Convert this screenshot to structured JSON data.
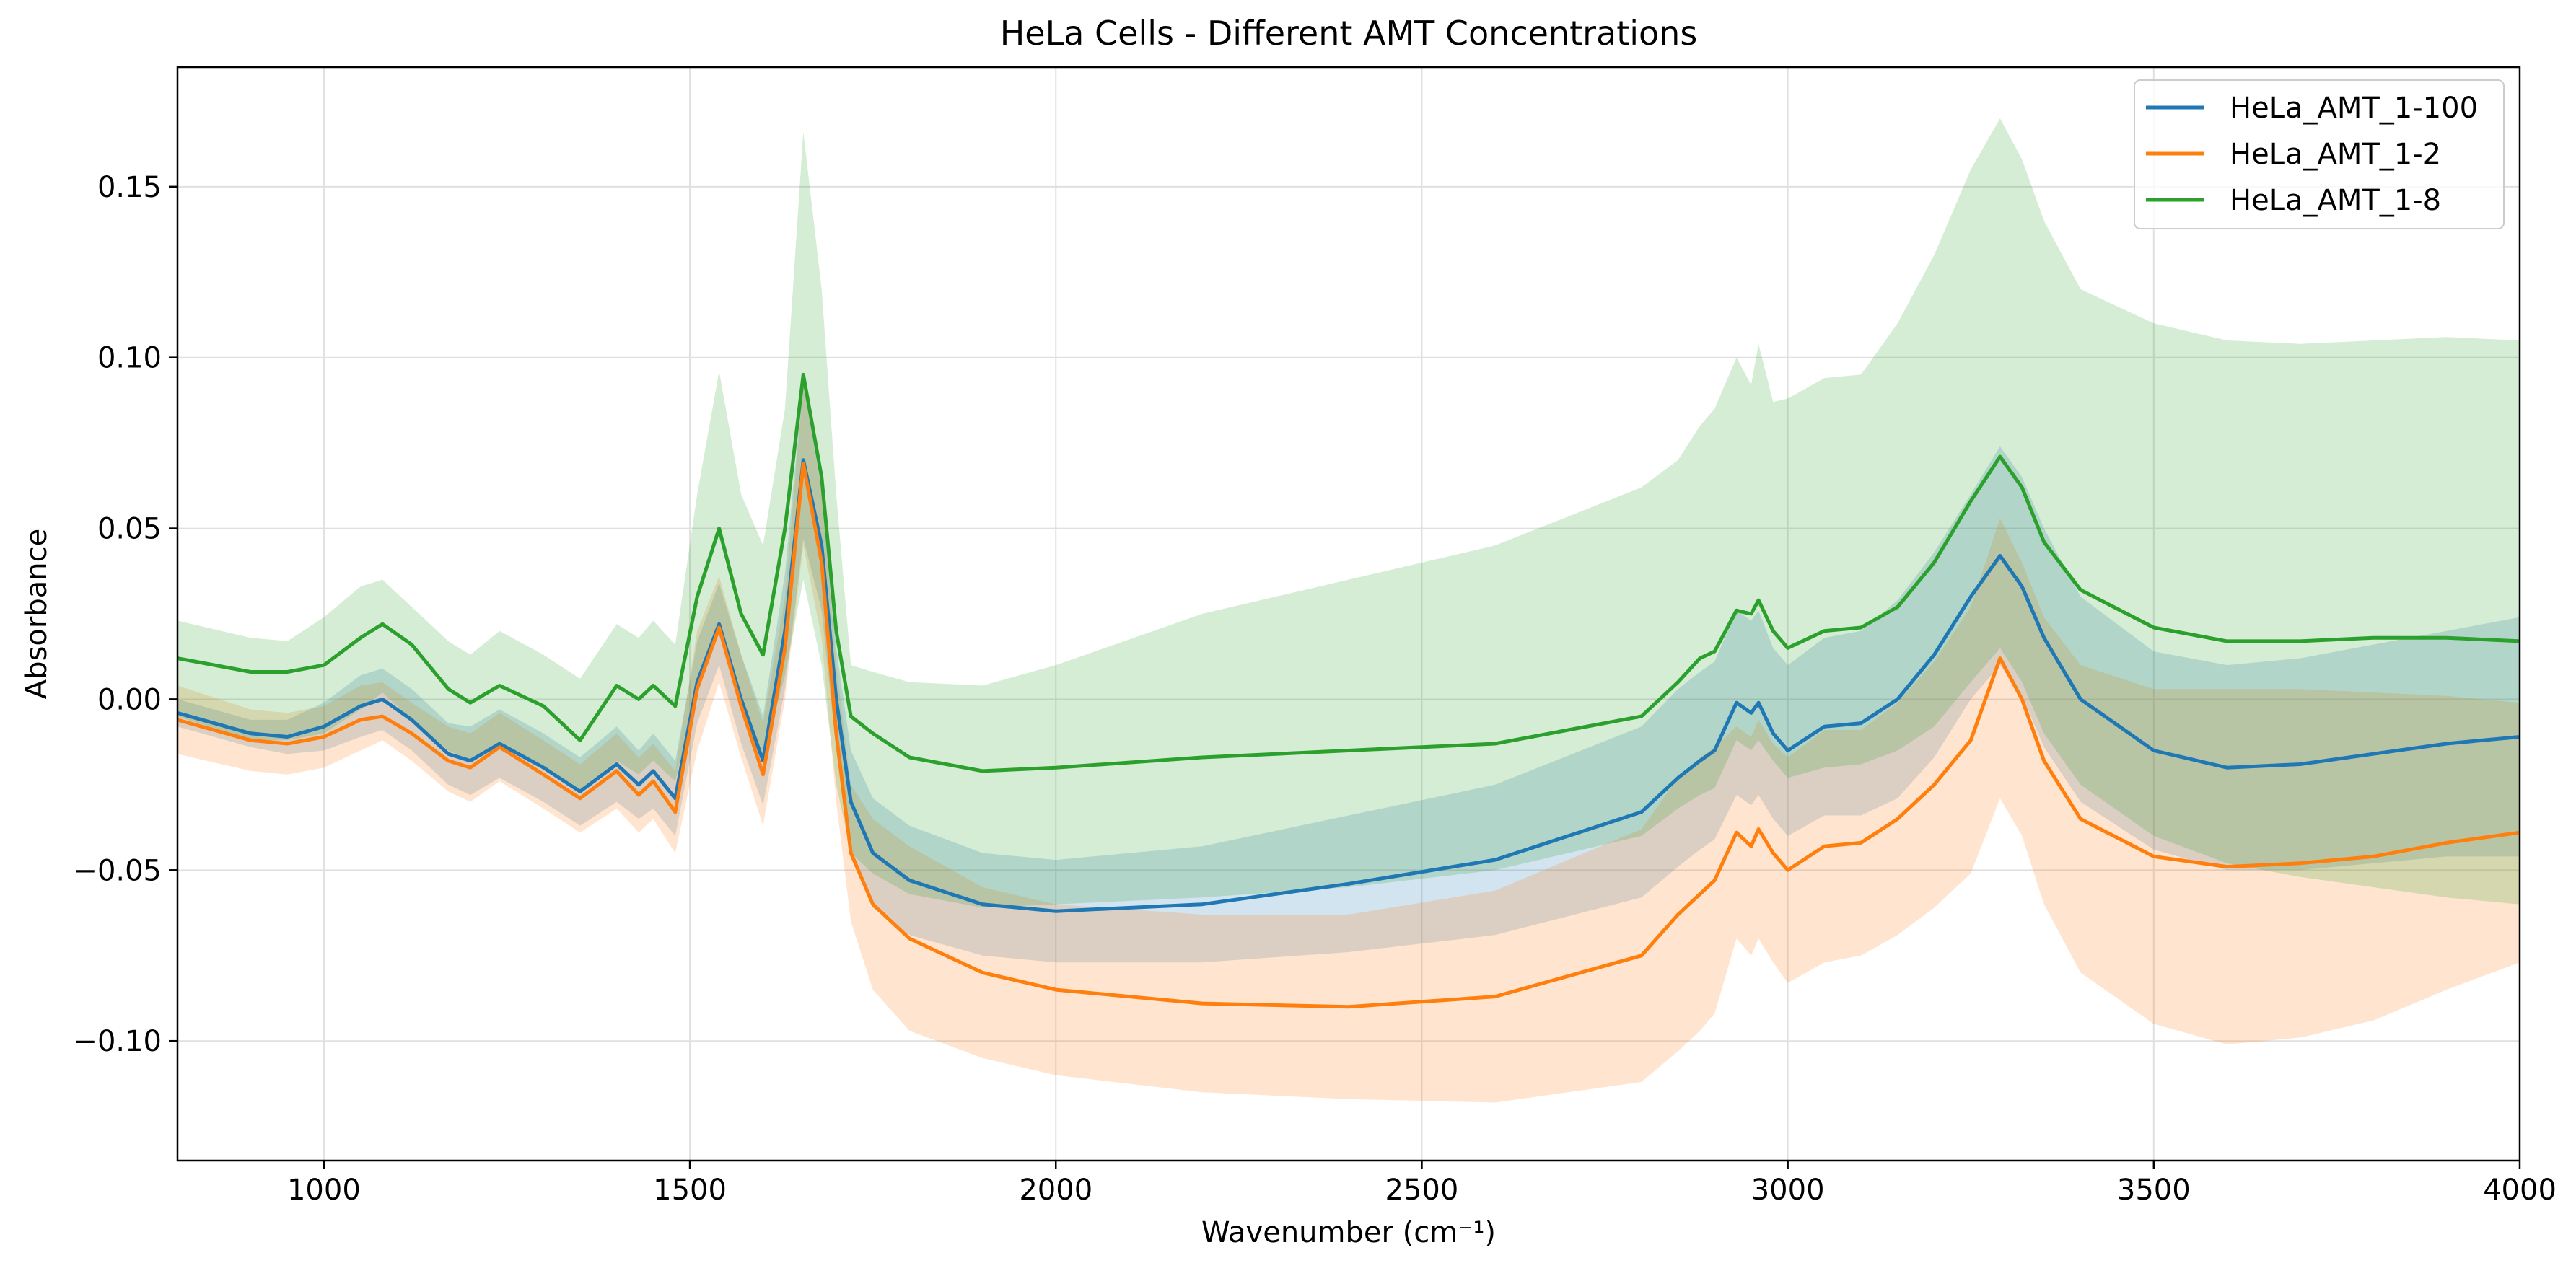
{
  "chart_data": {
    "type": "line",
    "title": "HeLa Cells - Different AMT Concentrations",
    "xlabel": "Wavenumber (cm⁻¹)",
    "ylabel": "Absorbance",
    "xlim": [
      800,
      4000
    ],
    "ylim": [
      -0.135,
      0.185
    ],
    "xticks": [
      1000,
      1500,
      2000,
      2500,
      3000,
      3500,
      4000
    ],
    "yticks": [
      -0.1,
      -0.05,
      0.0,
      0.05,
      0.1,
      0.15
    ],
    "ytick_labels": [
      "−0.10",
      "−0.05",
      "0.00",
      "0.05",
      "0.10",
      "0.15"
    ],
    "grid": true,
    "legend_position": "top-right",
    "series": [
      {
        "name": "HeLa_AMT_1-100",
        "color": "#1f77b4",
        "x": [
          800,
          900,
          950,
          1000,
          1050,
          1080,
          1120,
          1170,
          1200,
          1240,
          1300,
          1350,
          1400,
          1430,
          1450,
          1480,
          1510,
          1540,
          1570,
          1600,
          1630,
          1655,
          1680,
          1700,
          1720,
          1750,
          1800,
          1900,
          2000,
          2200,
          2400,
          2600,
          2800,
          2850,
          2880,
          2900,
          2930,
          2950,
          2960,
          2980,
          3000,
          3050,
          3100,
          3150,
          3200,
          3250,
          3290,
          3320,
          3350,
          3400,
          3500,
          3600,
          3700,
          3800,
          3900,
          4000
        ],
        "y": [
          -0.004,
          -0.01,
          -0.011,
          -0.008,
          -0.002,
          0.0,
          -0.006,
          -0.016,
          -0.018,
          -0.013,
          -0.02,
          -0.027,
          -0.019,
          -0.025,
          -0.021,
          -0.029,
          0.005,
          0.022,
          0.0,
          -0.018,
          0.02,
          0.07,
          0.045,
          0.0,
          -0.03,
          -0.045,
          -0.053,
          -0.06,
          -0.062,
          -0.06,
          -0.054,
          -0.047,
          -0.033,
          -0.023,
          -0.018,
          -0.015,
          -0.001,
          -0.004,
          -0.001,
          -0.01,
          -0.015,
          -0.008,
          -0.007,
          0.0,
          0.013,
          0.03,
          0.042,
          0.033,
          0.018,
          0.0,
          -0.015,
          -0.02,
          -0.019,
          -0.016,
          -0.013,
          -0.011
        ],
        "lower": [
          -0.008,
          -0.014,
          -0.016,
          -0.015,
          -0.011,
          -0.009,
          -0.015,
          -0.025,
          -0.028,
          -0.023,
          -0.03,
          -0.037,
          -0.03,
          -0.035,
          -0.032,
          -0.04,
          -0.007,
          0.01,
          -0.013,
          -0.031,
          0.003,
          0.047,
          0.026,
          -0.015,
          -0.045,
          -0.061,
          -0.069,
          -0.075,
          -0.077,
          -0.077,
          -0.074,
          -0.069,
          -0.058,
          -0.049,
          -0.044,
          -0.041,
          -0.028,
          -0.031,
          -0.028,
          -0.035,
          -0.04,
          -0.034,
          -0.034,
          -0.029,
          -0.017,
          0.0,
          0.01,
          0.001,
          -0.014,
          -0.03,
          -0.044,
          -0.05,
          -0.05,
          -0.048,
          -0.046,
          -0.046
        ],
        "upper": [
          0.0,
          -0.006,
          -0.006,
          -0.001,
          0.007,
          0.009,
          0.003,
          -0.007,
          -0.008,
          -0.003,
          -0.01,
          -0.017,
          -0.008,
          -0.015,
          -0.01,
          -0.018,
          0.017,
          0.034,
          0.013,
          -0.005,
          0.037,
          0.093,
          0.064,
          0.015,
          -0.015,
          -0.029,
          -0.037,
          -0.045,
          -0.047,
          -0.043,
          -0.034,
          -0.025,
          -0.008,
          0.003,
          0.008,
          0.011,
          0.026,
          0.023,
          0.026,
          0.015,
          0.01,
          0.018,
          0.02,
          0.029,
          0.043,
          0.06,
          0.074,
          0.065,
          0.05,
          0.03,
          0.014,
          0.01,
          0.012,
          0.016,
          0.02,
          0.024
        ]
      },
      {
        "name": "HeLa_AMT_1-2",
        "color": "#ff7f0e",
        "x": [
          800,
          900,
          950,
          1000,
          1050,
          1080,
          1120,
          1170,
          1200,
          1240,
          1300,
          1350,
          1400,
          1430,
          1450,
          1480,
          1510,
          1540,
          1570,
          1600,
          1630,
          1655,
          1680,
          1700,
          1720,
          1750,
          1800,
          1900,
          2000,
          2200,
          2400,
          2600,
          2800,
          2850,
          2880,
          2900,
          2930,
          2950,
          2960,
          2980,
          3000,
          3050,
          3100,
          3150,
          3200,
          3250,
          3290,
          3320,
          3350,
          3400,
          3500,
          3600,
          3700,
          3800,
          3900,
          4000
        ],
        "y": [
          -0.006,
          -0.012,
          -0.013,
          -0.011,
          -0.006,
          -0.005,
          -0.01,
          -0.018,
          -0.02,
          -0.014,
          -0.022,
          -0.029,
          -0.021,
          -0.028,
          -0.024,
          -0.033,
          0.003,
          0.021,
          -0.002,
          -0.022,
          0.015,
          0.069,
          0.04,
          -0.01,
          -0.045,
          -0.06,
          -0.07,
          -0.08,
          -0.085,
          -0.089,
          -0.09,
          -0.087,
          -0.075,
          -0.063,
          -0.057,
          -0.053,
          -0.039,
          -0.043,
          -0.038,
          -0.045,
          -0.05,
          -0.043,
          -0.042,
          -0.035,
          -0.025,
          -0.012,
          0.012,
          0.0,
          -0.018,
          -0.035,
          -0.046,
          -0.049,
          -0.048,
          -0.046,
          -0.042,
          -0.039
        ],
        "lower": [
          -0.016,
          -0.021,
          -0.022,
          -0.02,
          -0.015,
          -0.012,
          -0.018,
          -0.027,
          -0.03,
          -0.024,
          -0.032,
          -0.039,
          -0.032,
          -0.039,
          -0.035,
          -0.045,
          -0.015,
          0.005,
          -0.017,
          -0.037,
          0.0,
          0.045,
          0.018,
          -0.03,
          -0.065,
          -0.085,
          -0.097,
          -0.105,
          -0.11,
          -0.115,
          -0.117,
          -0.118,
          -0.112,
          -0.103,
          -0.097,
          -0.092,
          -0.07,
          -0.075,
          -0.07,
          -0.077,
          -0.083,
          -0.077,
          -0.075,
          -0.069,
          -0.061,
          -0.051,
          -0.029,
          -0.04,
          -0.06,
          -0.08,
          -0.095,
          -0.101,
          -0.099,
          -0.094,
          -0.085,
          -0.077
        ],
        "upper": [
          0.004,
          -0.003,
          -0.004,
          -0.002,
          0.004,
          0.005,
          -0.001,
          -0.008,
          -0.01,
          -0.004,
          -0.012,
          -0.019,
          -0.01,
          -0.017,
          -0.013,
          -0.021,
          0.02,
          0.036,
          0.013,
          -0.007,
          0.03,
          0.092,
          0.061,
          0.01,
          -0.025,
          -0.035,
          -0.043,
          -0.055,
          -0.06,
          -0.063,
          -0.063,
          -0.056,
          -0.038,
          -0.023,
          -0.017,
          -0.014,
          -0.008,
          -0.011,
          -0.006,
          -0.013,
          -0.017,
          -0.009,
          -0.009,
          -0.001,
          0.011,
          0.027,
          0.053,
          0.04,
          0.024,
          0.01,
          0.003,
          0.003,
          0.003,
          0.002,
          0.001,
          -0.001
        ]
      },
      {
        "name": "HeLa_AMT_1-8",
        "color": "#2ca02c",
        "x": [
          800,
          900,
          950,
          1000,
          1050,
          1080,
          1120,
          1170,
          1200,
          1240,
          1300,
          1350,
          1400,
          1430,
          1450,
          1480,
          1510,
          1540,
          1570,
          1600,
          1630,
          1655,
          1680,
          1700,
          1720,
          1750,
          1800,
          1900,
          2000,
          2200,
          2400,
          2600,
          2800,
          2850,
          2880,
          2900,
          2930,
          2950,
          2960,
          2980,
          3000,
          3050,
          3100,
          3150,
          3200,
          3250,
          3290,
          3320,
          3350,
          3400,
          3500,
          3600,
          3700,
          3800,
          3900,
          4000
        ],
        "y": [
          0.012,
          0.008,
          0.008,
          0.01,
          0.018,
          0.022,
          0.016,
          0.003,
          -0.001,
          0.004,
          -0.002,
          -0.012,
          0.004,
          0.0,
          0.004,
          -0.002,
          0.03,
          0.05,
          0.025,
          0.013,
          0.05,
          0.095,
          0.065,
          0.02,
          -0.005,
          -0.01,
          -0.017,
          -0.021,
          -0.02,
          -0.017,
          -0.015,
          -0.013,
          -0.005,
          0.005,
          0.012,
          0.014,
          0.026,
          0.025,
          0.029,
          0.02,
          0.015,
          0.02,
          0.021,
          0.027,
          0.04,
          0.058,
          0.071,
          0.062,
          0.046,
          0.032,
          0.021,
          0.017,
          0.017,
          0.018,
          0.018,
          0.017
        ],
        "lower": [
          -0.005,
          -0.012,
          -0.012,
          -0.01,
          -0.003,
          0.002,
          -0.006,
          -0.015,
          -0.018,
          -0.013,
          -0.02,
          -0.027,
          -0.018,
          -0.022,
          -0.018,
          -0.024,
          0.003,
          0.022,
          0.0,
          -0.017,
          0.007,
          0.035,
          0.01,
          -0.025,
          -0.045,
          -0.051,
          -0.057,
          -0.061,
          -0.06,
          -0.058,
          -0.055,
          -0.05,
          -0.04,
          -0.032,
          -0.028,
          -0.026,
          -0.012,
          -0.015,
          -0.012,
          -0.018,
          -0.023,
          -0.02,
          -0.019,
          -0.015,
          -0.008,
          0.005,
          0.015,
          0.005,
          -0.01,
          -0.025,
          -0.04,
          -0.048,
          -0.052,
          -0.055,
          -0.058,
          -0.06
        ],
        "upper": [
          0.023,
          0.018,
          0.017,
          0.024,
          0.033,
          0.035,
          0.027,
          0.017,
          0.013,
          0.02,
          0.013,
          0.006,
          0.022,
          0.018,
          0.023,
          0.016,
          0.06,
          0.096,
          0.06,
          0.045,
          0.085,
          0.166,
          0.12,
          0.06,
          0.01,
          0.008,
          0.005,
          0.004,
          0.01,
          0.025,
          0.035,
          0.045,
          0.062,
          0.07,
          0.08,
          0.085,
          0.1,
          0.092,
          0.104,
          0.087,
          0.088,
          0.094,
          0.095,
          0.11,
          0.13,
          0.155,
          0.17,
          0.158,
          0.14,
          0.12,
          0.11,
          0.105,
          0.104,
          0.105,
          0.106,
          0.105
        ]
      }
    ]
  }
}
